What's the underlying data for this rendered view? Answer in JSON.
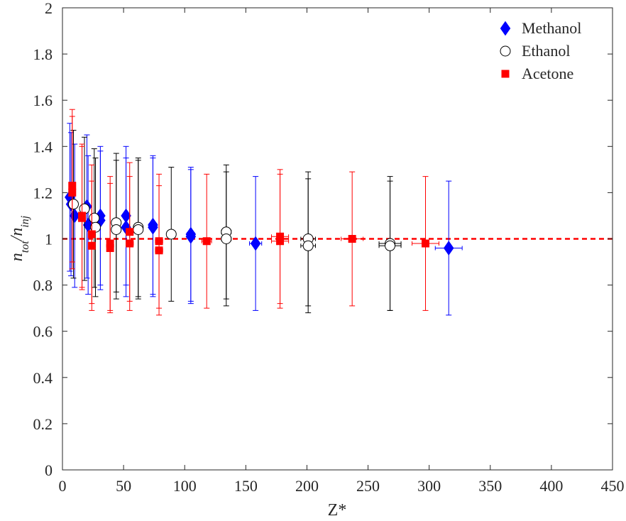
{
  "chart_data": {
    "type": "scatter",
    "xlabel": "Z*",
    "ylabel": "n_tot/n_inj",
    "ylabel_main": "n",
    "ylabel_sub1": "tot",
    "ylabel_sep": "/n",
    "ylabel_sub2": "inj",
    "xlim": [
      0,
      450
    ],
    "ylim": [
      0,
      2
    ],
    "x_ticks": [
      "0",
      "50",
      "100",
      "150",
      "200",
      "250",
      "300",
      "350",
      "400",
      "450"
    ],
    "y_ticks": [
      "0",
      "0.2",
      "0.4",
      "0.6",
      "0.8",
      "1",
      "1.2",
      "1.4",
      "1.6",
      "1.8",
      "2"
    ],
    "grid": false,
    "legend_position": "top-right",
    "reference_line": {
      "y": 1,
      "style": "dashed",
      "color": "#ff0000"
    },
    "series": [
      {
        "name": "Methanol",
        "marker": "diamond",
        "color": "#0000ff",
        "points": [
          {
            "x": 6,
            "y": 1.18,
            "yerr": 0.32,
            "xerr": 1
          },
          {
            "x": 7,
            "y": 1.15,
            "yerr": 0.31,
            "xerr": 1
          },
          {
            "x": 10,
            "y": 1.1,
            "yerr": 0.31,
            "xerr": 1
          },
          {
            "x": 20,
            "y": 1.14,
            "yerr": 0.31,
            "xerr": 2
          },
          {
            "x": 21,
            "y": 1.06,
            "yerr": 0.3,
            "xerr": 2
          },
          {
            "x": 31,
            "y": 1.1,
            "yerr": 0.3,
            "xerr": 2
          },
          {
            "x": 31,
            "y": 1.08,
            "yerr": 0.3,
            "xerr": 2
          },
          {
            "x": 52,
            "y": 1.1,
            "yerr": 0.3,
            "xerr": 2
          },
          {
            "x": 52,
            "y": 1.05,
            "yerr": 0.3,
            "xerr": 2
          },
          {
            "x": 74,
            "y": 1.06,
            "yerr": 0.3,
            "xerr": 3
          },
          {
            "x": 74,
            "y": 1.05,
            "yerr": 0.3,
            "xerr": 3
          },
          {
            "x": 105,
            "y": 1.02,
            "yerr": 0.29,
            "xerr": 3
          },
          {
            "x": 105,
            "y": 1.01,
            "yerr": 0.29,
            "xerr": 3
          },
          {
            "x": 158,
            "y": 0.98,
            "yerr": 0.29,
            "xerr": 5
          },
          {
            "x": 316,
            "y": 0.96,
            "yerr": 0.29,
            "xerr": 11
          }
        ]
      },
      {
        "name": "Ethanol",
        "marker": "circle",
        "color": "#000000",
        "points": [
          {
            "x": 9,
            "y": 1.15,
            "yerr": 0.32,
            "xerr": 1
          },
          {
            "x": 18,
            "y": 1.13,
            "yerr": 0.31,
            "xerr": 2
          },
          {
            "x": 26,
            "y": 1.09,
            "yerr": 0.3,
            "xerr": 2
          },
          {
            "x": 27,
            "y": 1.05,
            "yerr": 0.3,
            "xerr": 2
          },
          {
            "x": 44,
            "y": 1.07,
            "yerr": 0.3,
            "xerr": 2
          },
          {
            "x": 44,
            "y": 1.04,
            "yerr": 0.3,
            "xerr": 2
          },
          {
            "x": 62,
            "y": 1.05,
            "yerr": 0.3,
            "xerr": 3
          },
          {
            "x": 62,
            "y": 1.04,
            "yerr": 0.3,
            "xerr": 3
          },
          {
            "x": 89,
            "y": 1.02,
            "yerr": 0.29,
            "xerr": 3
          },
          {
            "x": 134,
            "y": 1.03,
            "yerr": 0.29,
            "xerr": 4
          },
          {
            "x": 134,
            "y": 1.0,
            "yerr": 0.29,
            "xerr": 4
          },
          {
            "x": 201,
            "y": 1.0,
            "yerr": 0.29,
            "xerr": 6
          },
          {
            "x": 201,
            "y": 0.97,
            "yerr": 0.29,
            "xerr": 6
          },
          {
            "x": 268,
            "y": 0.98,
            "yerr": 0.29,
            "xerr": 9
          },
          {
            "x": 268,
            "y": 0.97,
            "yerr": 0.28,
            "xerr": 9
          }
        ]
      },
      {
        "name": "Acetone",
        "marker": "square",
        "color": "#ff0000",
        "points": [
          {
            "x": 8,
            "y": 1.23,
            "yerr": 0.33,
            "xerr": 1
          },
          {
            "x": 8,
            "y": 1.2,
            "yerr": 0.33,
            "xerr": 1
          },
          {
            "x": 16,
            "y": 1.1,
            "yerr": 0.31,
            "xerr": 2
          },
          {
            "x": 16,
            "y": 1.09,
            "yerr": 0.31,
            "xerr": 2
          },
          {
            "x": 24,
            "y": 1.02,
            "yerr": 0.3,
            "xerr": 2
          },
          {
            "x": 24,
            "y": 0.97,
            "yerr": 0.28,
            "xerr": 2
          },
          {
            "x": 39,
            "y": 0.98,
            "yerr": 0.29,
            "xerr": 2
          },
          {
            "x": 39,
            "y": 0.96,
            "yerr": 0.28,
            "xerr": 2
          },
          {
            "x": 55,
            "y": 1.03,
            "yerr": 0.3,
            "xerr": 3
          },
          {
            "x": 55,
            "y": 0.98,
            "yerr": 0.29,
            "xerr": 3
          },
          {
            "x": 79,
            "y": 0.99,
            "yerr": 0.29,
            "xerr": 3
          },
          {
            "x": 79,
            "y": 0.95,
            "yerr": 0.28,
            "xerr": 3
          },
          {
            "x": 118,
            "y": 0.99,
            "yerr": 0.29,
            "xerr": 4
          },
          {
            "x": 178,
            "y": 1.01,
            "yerr": 0.29,
            "xerr": 7
          },
          {
            "x": 178,
            "y": 0.99,
            "yerr": 0.29,
            "xerr": 7
          },
          {
            "x": 237,
            "y": 1.0,
            "yerr": 0.29,
            "xerr": 9
          },
          {
            "x": 297,
            "y": 0.98,
            "yerr": 0.29,
            "xerr": 11
          }
        ]
      }
    ]
  }
}
